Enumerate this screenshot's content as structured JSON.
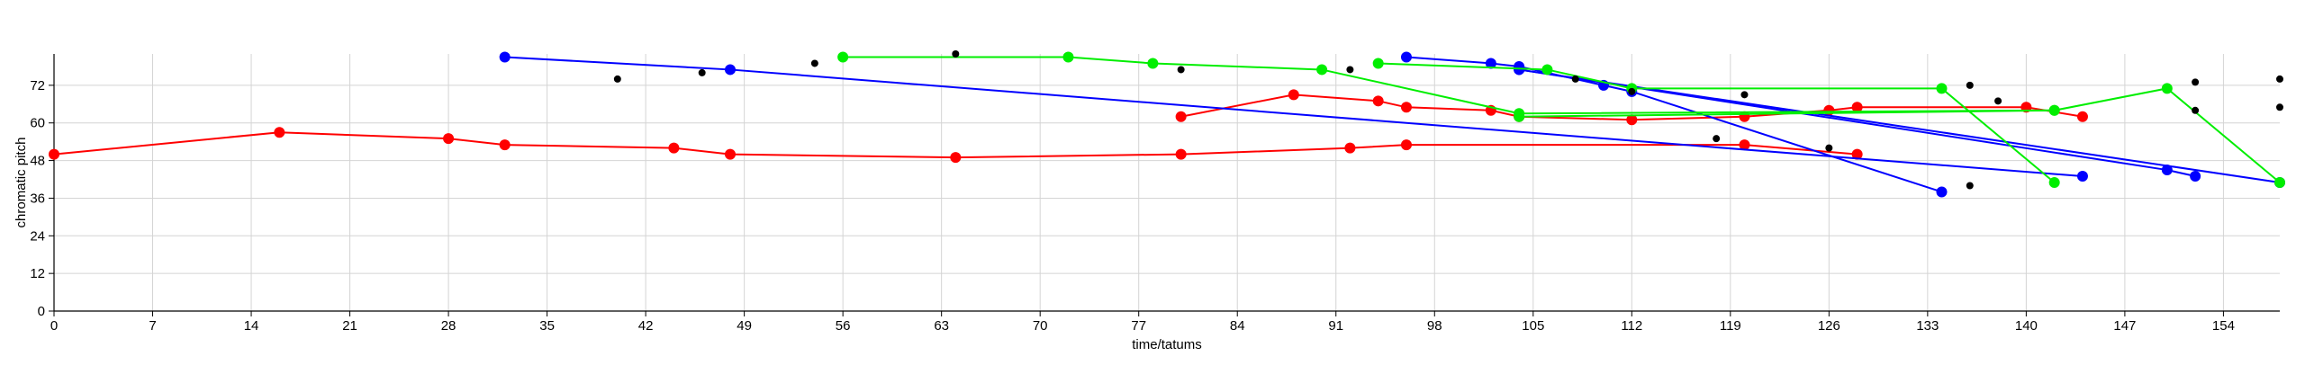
{
  "chart_data": {
    "type": "scatter",
    "title": "",
    "xlabel": "time/tatums",
    "ylabel": "chromatic pitch",
    "xlim": [
      0,
      158
    ],
    "ylim": [
      0,
      82
    ],
    "xticks": [
      0,
      7,
      14,
      21,
      28,
      35,
      42,
      49,
      56,
      63,
      70,
      77,
      84,
      91,
      98,
      105,
      112,
      119,
      126,
      133,
      140,
      147,
      154
    ],
    "yticks": [
      0,
      12,
      24,
      36,
      48,
      60,
      72
    ],
    "grid": true,
    "legend": "none",
    "series": [
      {
        "color": "#ff0000",
        "style": "line",
        "points": [
          [
            0,
            50
          ],
          [
            16,
            57
          ],
          [
            28,
            55
          ],
          [
            32,
            53
          ],
          [
            44,
            52
          ],
          [
            48,
            50
          ],
          [
            64,
            49
          ],
          [
            80,
            50
          ],
          [
            92,
            52
          ],
          [
            96,
            53
          ],
          [
            120,
            53
          ],
          [
            128,
            50
          ]
        ]
      },
      {
        "color": "#ff0000",
        "style": "line",
        "points": [
          [
            80,
            62
          ],
          [
            88,
            69
          ],
          [
            94,
            67
          ],
          [
            96,
            65
          ],
          [
            102,
            64
          ],
          [
            104,
            62
          ],
          [
            112,
            61
          ],
          [
            120,
            62
          ],
          [
            126,
            64
          ],
          [
            128,
            65
          ],
          [
            140,
            65
          ],
          [
            144,
            62
          ]
        ]
      },
      {
        "color": "#0000ff",
        "style": "line",
        "points": [
          [
            32,
            81
          ],
          [
            48,
            77
          ],
          [
            144,
            43
          ]
        ]
      },
      {
        "color": "#0000ff",
        "style": "line",
        "points": [
          [
            96,
            81
          ],
          [
            102,
            79
          ],
          [
            104,
            78
          ],
          [
            110,
            72
          ],
          [
            112,
            70
          ],
          [
            134,
            38
          ]
        ]
      },
      {
        "color": "#0000ff",
        "style": "line",
        "points": [
          [
            104,
            77
          ],
          [
            150,
            45
          ],
          [
            152,
            43
          ]
        ]
      },
      {
        "color": "#0000ff",
        "style": "line",
        "points": [
          [
            104,
            77
          ],
          [
            158,
            41
          ]
        ]
      },
      {
        "color": "#00ee00",
        "style": "line",
        "points": [
          [
            56,
            81
          ],
          [
            72,
            81
          ],
          [
            78,
            79
          ],
          [
            90,
            77
          ],
          [
            104,
            63
          ],
          [
            142,
            64
          ]
        ]
      },
      {
        "color": "#00ee00",
        "style": "line",
        "points": [
          [
            94,
            79
          ],
          [
            106,
            77
          ],
          [
            112,
            71
          ],
          [
            134,
            71
          ],
          [
            142,
            41
          ]
        ]
      },
      {
        "color": "#00ee00",
        "style": "line",
        "points": [
          [
            104,
            62
          ],
          [
            142,
            64
          ],
          [
            150,
            71
          ],
          [
            158,
            41
          ]
        ]
      },
      {
        "color": "#000000",
        "style": "points",
        "points": [
          [
            40,
            74
          ],
          [
            46,
            76
          ],
          [
            54,
            79
          ],
          [
            64,
            82
          ],
          [
            80,
            77
          ],
          [
            92,
            77
          ],
          [
            108,
            74
          ],
          [
            112,
            70
          ],
          [
            118,
            55
          ],
          [
            120,
            69
          ],
          [
            126,
            52
          ],
          [
            136,
            72
          ],
          [
            136,
            40
          ],
          [
            138,
            67
          ],
          [
            152,
            73
          ],
          [
            152,
            64
          ],
          [
            158,
            74
          ],
          [
            158,
            65
          ]
        ]
      }
    ]
  }
}
